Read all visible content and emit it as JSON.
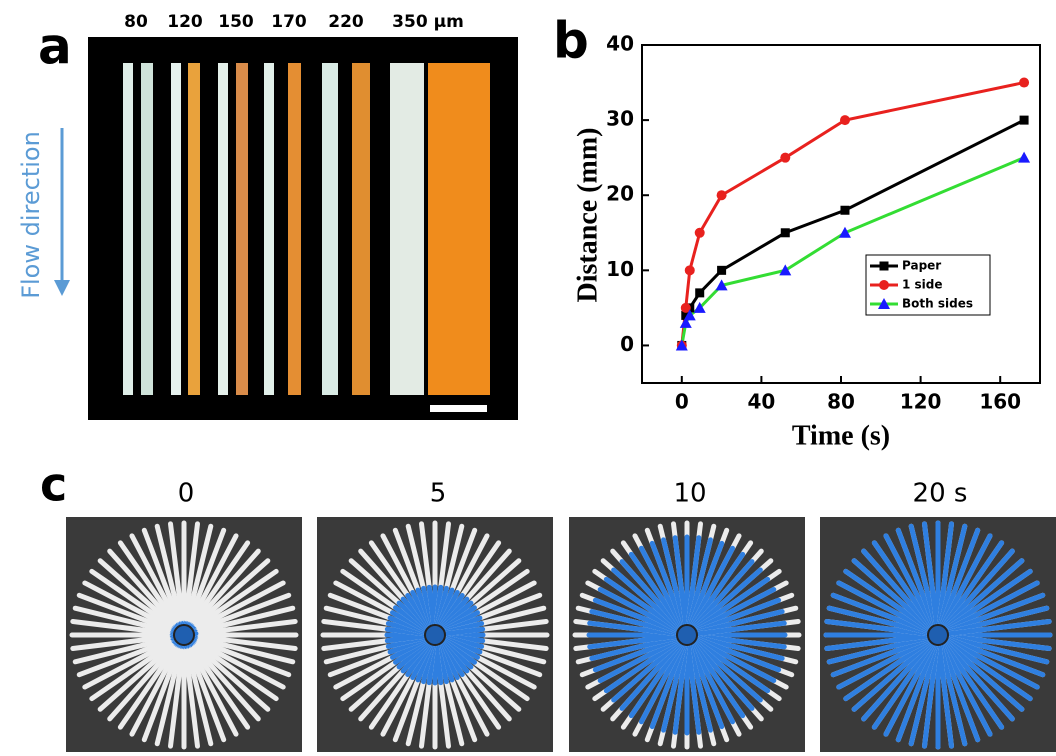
{
  "panel_a": {
    "label": "a",
    "widths": [
      "80",
      "120",
      "150",
      "170",
      "220",
      "350 µm"
    ],
    "side_label": "Flow direction"
  },
  "chart_data": {
    "type": "line",
    "panel_label": "b",
    "x_label": "Time (s)",
    "y_label": "Distance (mm)",
    "x": [
      0,
      2,
      4,
      9,
      20,
      52,
      82,
      172
    ],
    "series": [
      {
        "name": "Paper",
        "color": "#000000",
        "marker": "square",
        "marker_color": "#000000",
        "values": [
          0,
          4,
          5,
          7,
          10,
          15,
          18,
          30
        ]
      },
      {
        "name": "1 side",
        "color": "#e8211e",
        "marker": "circle",
        "marker_color": "#e8211e",
        "values": [
          0,
          5,
          10,
          15,
          20,
          25,
          30,
          35
        ]
      },
      {
        "name": "Both sides",
        "color": "#33dd33",
        "marker": "triangle",
        "marker_color": "#1a1aff",
        "values": [
          0,
          3,
          4,
          5,
          8,
          10,
          15,
          25
        ]
      }
    ],
    "xlim": [
      -20,
      180
    ],
    "ylim": [
      -5,
      40
    ],
    "xticks": [
      0,
      40,
      80,
      120,
      160
    ],
    "yticks": [
      0,
      10,
      20,
      30,
      40
    ],
    "legend": "lower-right"
  },
  "panel_c": {
    "label": "c",
    "times": [
      "0",
      "5",
      "10",
      "20 s"
    ]
  }
}
